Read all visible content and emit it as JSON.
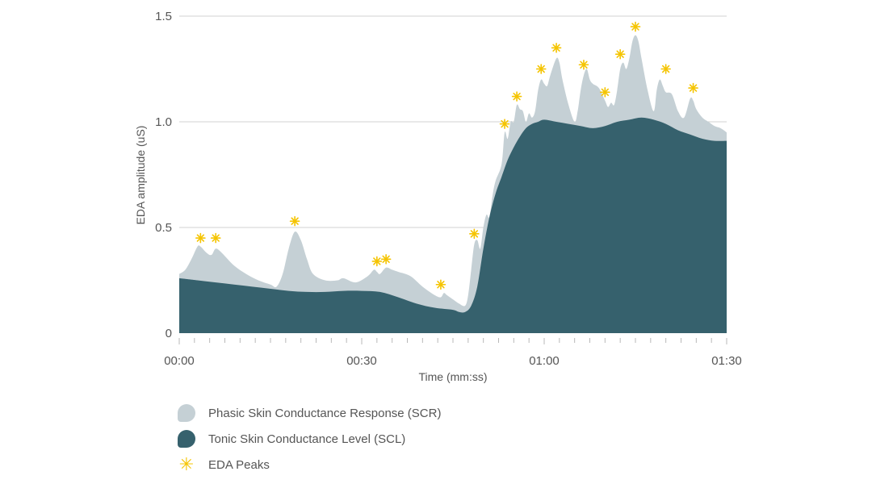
{
  "chart_data": {
    "type": "area",
    "xlabel": "Time (mm:ss)",
    "ylabel": "EDA amplitude (uS)",
    "xlim": [
      0,
      90
    ],
    "ylim": [
      0,
      1.5
    ],
    "x_ticks": [
      {
        "value": 0,
        "label": "00:00"
      },
      {
        "value": 30,
        "label": "00:30"
      },
      {
        "value": 60,
        "label": "01:00"
      },
      {
        "value": 90,
        "label": "01:30"
      }
    ],
    "y_ticks": [
      {
        "value": 0,
        "label": "0"
      },
      {
        "value": 0.5,
        "label": "0.5"
      },
      {
        "value": 1.0,
        "label": "1.0"
      },
      {
        "value": 1.5,
        "label": "1.5"
      }
    ],
    "grid": true,
    "colors": {
      "phasic": "#c5d0d5",
      "tonic": "#36616d",
      "peaks": "#f5c400",
      "grid": "#d0d0d0"
    },
    "series": [
      {
        "name": "Phasic Skin Conductance Response (SCR)",
        "key": "phasic",
        "points": [
          [
            0,
            0.28
          ],
          [
            1,
            0.3
          ],
          [
            2,
            0.35
          ],
          [
            3,
            0.41
          ],
          [
            3.5,
            0.41
          ],
          [
            4.5,
            0.38
          ],
          [
            5.3,
            0.37
          ],
          [
            6,
            0.4
          ],
          [
            7,
            0.38
          ],
          [
            9,
            0.32
          ],
          [
            11,
            0.28
          ],
          [
            13,
            0.25
          ],
          [
            15,
            0.23
          ],
          [
            16,
            0.22
          ],
          [
            17,
            0.28
          ],
          [
            18,
            0.4
          ],
          [
            19,
            0.48
          ],
          [
            20,
            0.44
          ],
          [
            21,
            0.35
          ],
          [
            22,
            0.28
          ],
          [
            24,
            0.25
          ],
          [
            26,
            0.25
          ],
          [
            27,
            0.26
          ],
          [
            29,
            0.24
          ],
          [
            31,
            0.27
          ],
          [
            32,
            0.3
          ],
          [
            32.5,
            0.29
          ],
          [
            33,
            0.28
          ],
          [
            34,
            0.31
          ],
          [
            35,
            0.3
          ],
          [
            36,
            0.29
          ],
          [
            38,
            0.27
          ],
          [
            40,
            0.22
          ],
          [
            42,
            0.18
          ],
          [
            43,
            0.17
          ],
          [
            43.5,
            0.19
          ],
          [
            44,
            0.18
          ],
          [
            45,
            0.16
          ],
          [
            46,
            0.14
          ],
          [
            47,
            0.13
          ],
          [
            47.5,
            0.18
          ],
          [
            48,
            0.3
          ],
          [
            48.5,
            0.42
          ],
          [
            49,
            0.44
          ],
          [
            49.5,
            0.4
          ],
          [
            50,
            0.5
          ],
          [
            50.5,
            0.56
          ],
          [
            51,
            0.55
          ],
          [
            51.5,
            0.65
          ],
          [
            52,
            0.72
          ],
          [
            53,
            0.8
          ],
          [
            53.5,
            0.95
          ],
          [
            54,
            0.92
          ],
          [
            54.5,
            1.0
          ],
          [
            55,
            1.0
          ],
          [
            55.5,
            1.08
          ],
          [
            56,
            1.06
          ],
          [
            56.5,
            1.05
          ],
          [
            57,
            1.0
          ],
          [
            57.5,
            1.04
          ],
          [
            58,
            1.02
          ],
          [
            58.5,
            1.05
          ],
          [
            59,
            1.15
          ],
          [
            59.5,
            1.2
          ],
          [
            60,
            1.18
          ],
          [
            60.5,
            1.17
          ],
          [
            61,
            1.22
          ],
          [
            62,
            1.3
          ],
          [
            62.5,
            1.28
          ],
          [
            63,
            1.2
          ],
          [
            64,
            1.08
          ],
          [
            65,
            1.0
          ],
          [
            65.5,
            1.05
          ],
          [
            66,
            1.15
          ],
          [
            66.5,
            1.22
          ],
          [
            67,
            1.25
          ],
          [
            67.5,
            1.2
          ],
          [
            68,
            1.18
          ],
          [
            69,
            1.16
          ],
          [
            70,
            1.1
          ],
          [
            70.5,
            1.07
          ],
          [
            71,
            1.09
          ],
          [
            71.5,
            1.08
          ],
          [
            72,
            1.15
          ],
          [
            72.5,
            1.25
          ],
          [
            73,
            1.28
          ],
          [
            73.5,
            1.25
          ],
          [
            74,
            1.3
          ],
          [
            74.5,
            1.38
          ],
          [
            75,
            1.41
          ],
          [
            75.5,
            1.38
          ],
          [
            76,
            1.3
          ],
          [
            77,
            1.15
          ],
          [
            78,
            1.05
          ],
          [
            78.5,
            1.15
          ],
          [
            79,
            1.2
          ],
          [
            79.5,
            1.17
          ],
          [
            80,
            1.14
          ],
          [
            81,
            1.13
          ],
          [
            82,
            1.05
          ],
          [
            83,
            1.02
          ],
          [
            84,
            1.11
          ],
          [
            84.5,
            1.1
          ],
          [
            85,
            1.06
          ],
          [
            86,
            1.02
          ],
          [
            87,
            1.0
          ],
          [
            88,
            0.98
          ],
          [
            89,
            0.97
          ],
          [
            90,
            0.95
          ]
        ]
      },
      {
        "name": "Tonic Skin Conductance Level (SCL)",
        "key": "tonic",
        "points": [
          [
            0,
            0.26
          ],
          [
            3,
            0.25
          ],
          [
            6,
            0.24
          ],
          [
            9,
            0.23
          ],
          [
            12,
            0.22
          ],
          [
            15,
            0.21
          ],
          [
            18,
            0.2
          ],
          [
            21,
            0.195
          ],
          [
            24,
            0.195
          ],
          [
            27,
            0.2
          ],
          [
            30,
            0.2
          ],
          [
            33,
            0.195
          ],
          [
            36,
            0.17
          ],
          [
            39,
            0.14
          ],
          [
            42,
            0.12
          ],
          [
            45,
            0.11
          ],
          [
            46,
            0.1
          ],
          [
            47,
            0.1
          ],
          [
            48,
            0.13
          ],
          [
            49,
            0.22
          ],
          [
            50,
            0.4
          ],
          [
            51,
            0.55
          ],
          [
            52,
            0.66
          ],
          [
            53,
            0.74
          ],
          [
            54,
            0.82
          ],
          [
            55,
            0.88
          ],
          [
            56,
            0.93
          ],
          [
            57,
            0.97
          ],
          [
            58,
            0.99
          ],
          [
            59,
            1.0
          ],
          [
            60,
            1.01
          ],
          [
            62,
            1.0
          ],
          [
            64,
            0.99
          ],
          [
            66,
            0.98
          ],
          [
            68,
            0.97
          ],
          [
            70,
            0.98
          ],
          [
            72,
            1.0
          ],
          [
            74,
            1.01
          ],
          [
            76,
            1.02
          ],
          [
            78,
            1.01
          ],
          [
            80,
            0.99
          ],
          [
            82,
            0.96
          ],
          [
            84,
            0.94
          ],
          [
            86,
            0.92
          ],
          [
            88,
            0.91
          ],
          [
            90,
            0.91
          ]
        ]
      }
    ],
    "peaks": [
      [
        3.5,
        0.45
      ],
      [
        6,
        0.45
      ],
      [
        19,
        0.53
      ],
      [
        32.5,
        0.34
      ],
      [
        34,
        0.35
      ],
      [
        43,
        0.23
      ],
      [
        48.5,
        0.47
      ],
      [
        53.5,
        0.99
      ],
      [
        55.5,
        1.12
      ],
      [
        59.5,
        1.25
      ],
      [
        62,
        1.35
      ],
      [
        66.5,
        1.27
      ],
      [
        70,
        1.14
      ],
      [
        72.5,
        1.32
      ],
      [
        75,
        1.45
      ],
      [
        80,
        1.25
      ],
      [
        84.5,
        1.16
      ]
    ],
    "legend": [
      {
        "key": "phasic",
        "label": "Phasic Skin Conductance Response (SCR)",
        "icon": "blob-swatch"
      },
      {
        "key": "tonic",
        "label": "Tonic Skin Conductance Level (SCL)",
        "icon": "blob-swatch"
      },
      {
        "key": "peaks",
        "label": "EDA Peaks",
        "icon": "asterisk-icon"
      }
    ]
  }
}
